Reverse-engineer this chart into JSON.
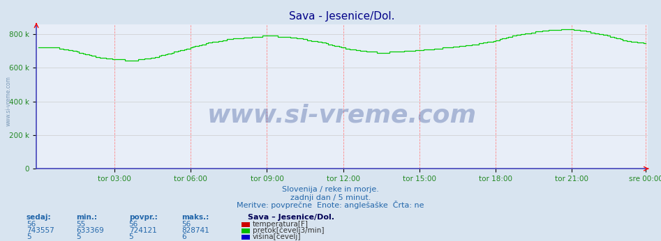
{
  "title": "Sava - Jesenice/Dol.",
  "background_color": "#d8e4f0",
  "plot_bg_color": "#e8eef8",
  "y_max": 860000,
  "y_min": 0,
  "y_ticks": [
    0,
    200000,
    400000,
    600000,
    800000
  ],
  "y_tick_labels": [
    "0",
    "200 k",
    "400 k",
    "600 k",
    "800 k"
  ],
  "x_tick_labels": [
    "tor 03:00",
    "tor 06:00",
    "tor 09:00",
    "tor 12:00",
    "tor 15:00",
    "tor 18:00",
    "tor 21:00",
    "sre 00:00"
  ],
  "subtitle1": "Slovenija / reke in morje.",
  "subtitle2": "zadnji dan / 5 minut.",
  "subtitle3": "Meritve: povprečne  Enote: anglešaške  Črta: ne",
  "table_header": [
    "sedaj:",
    "min.:",
    "povpr.:",
    "maks.:"
  ],
  "station_label": "Sava – Jesenice/Dol.",
  "series": [
    {
      "name": "temperatura[F]",
      "color": "#cc0000",
      "sedaj": "56",
      "min": "55",
      "povpr": "56",
      "maks": "56"
    },
    {
      "name": "pretok[čevelj3/min]",
      "color": "#00bb00",
      "sedaj": "743557",
      "min": "633369",
      "povpr": "724121",
      "maks": "828741"
    },
    {
      "name": "višina[čevelj]",
      "color": "#0000cc",
      "sedaj": "5",
      "min": "5",
      "povpr": "5",
      "maks": "6"
    }
  ],
  "watermark_text": "www.si-vreme.com",
  "watermark_color": "#1a3a8a",
  "watermark_alpha": 0.3,
  "axis_label_color": "#228822",
  "text_color": "#2266aa",
  "title_color": "#000088",
  "left_watermark": "www.si-vreme.com",
  "n_points": 288,
  "flow_profile": [
    720000,
    720000,
    695000,
    665000,
    650000,
    645000,
    660000,
    690000,
    720000,
    750000,
    770000,
    780000,
    790000,
    785000,
    770000,
    750000,
    720000,
    700000,
    690000,
    695000,
    705000,
    715000,
    725000,
    740000,
    760000,
    790000,
    810000,
    825000,
    830000,
    815000,
    790000,
    760000,
    745000
  ]
}
